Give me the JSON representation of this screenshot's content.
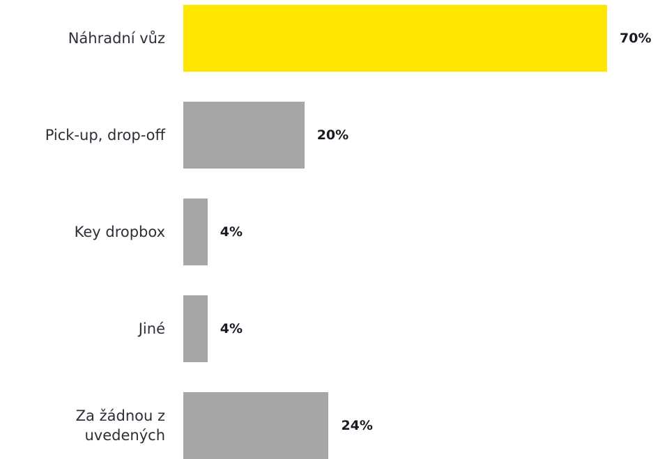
{
  "chart_data": {
    "type": "hbar",
    "categories": [
      "Náhradní vůz",
      "Pick-up, drop-off",
      "Key dropbox",
      "Jiné",
      "Za žádnou z\nuvedených"
    ],
    "values": [
      70,
      20,
      4,
      4,
      24
    ],
    "value_labels": [
      "70%",
      "20%",
      "4%",
      "4%",
      "24%"
    ],
    "colors": [
      "#ffe600",
      "#a6a6a6",
      "#a6a6a6",
      "#a6a6a6",
      "#a6a6a6"
    ]
  }
}
